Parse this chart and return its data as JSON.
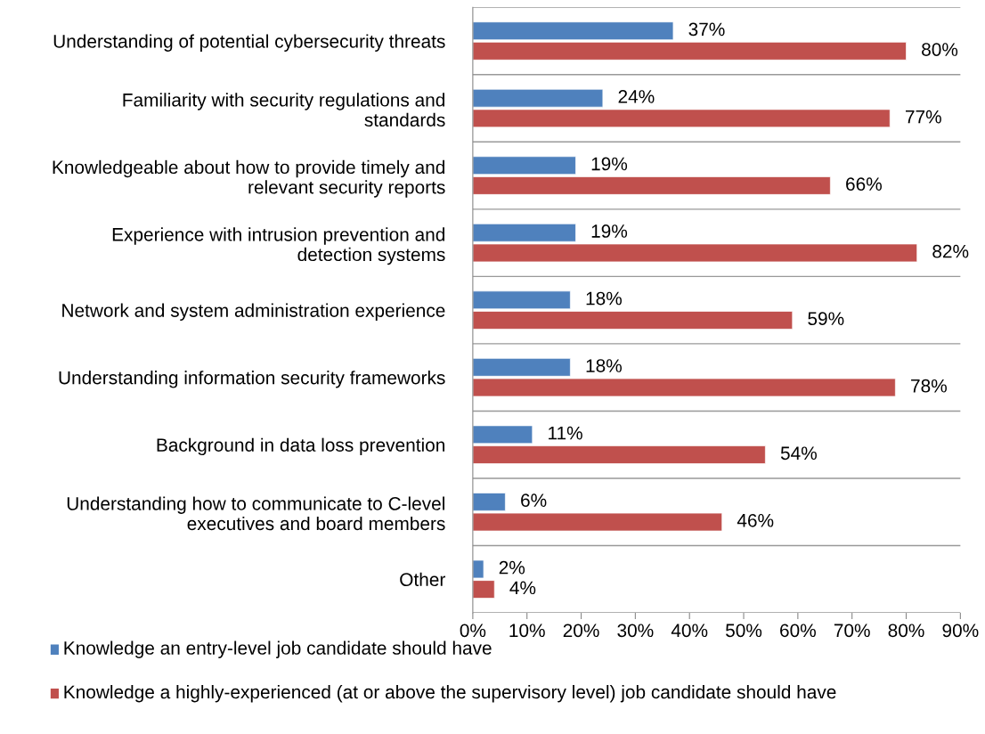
{
  "chart_data": {
    "type": "bar",
    "orientation": "horizontal",
    "categories": [
      "Understanding of potential cybersecurity threats",
      "Familiarity with security regulations and\nstandards",
      "Knowledgeable about how to provide timely and\nrelevant security reports",
      "Experience with intrusion prevention and\ndetection systems",
      "Network and system administration experience",
      "Understanding information security frameworks",
      "Background in data loss prevention",
      "Understanding how to communicate to C-level\nexecutives and board members",
      "Other"
    ],
    "series": [
      {
        "name": "Knowledge an entry-level job candidate should have",
        "color": "#4f81bd",
        "values": [
          37,
          24,
          19,
          19,
          18,
          18,
          11,
          6,
          2
        ],
        "value_labels": [
          "37%",
          "24%",
          "19%",
          "19%",
          "18%",
          "18%",
          "11%",
          "6%",
          "2%"
        ]
      },
      {
        "name": "Knowledge a highly-experienced (at or above the supervisory level) job candidate should have",
        "color": "#c0504d",
        "values": [
          80,
          77,
          66,
          82,
          59,
          78,
          54,
          46,
          4
        ],
        "value_labels": [
          "80%",
          "77%",
          "66%",
          "82%",
          "59%",
          "78%",
          "54%",
          "46%",
          "4%"
        ]
      }
    ],
    "xlim": [
      0,
      90
    ],
    "xticks": [
      {
        "value": 0,
        "label": "0%"
      },
      {
        "value": 10,
        "label": "10%"
      },
      {
        "value": 20,
        "label": "20%"
      },
      {
        "value": 30,
        "label": "30%"
      },
      {
        "value": 40,
        "label": "40%"
      },
      {
        "value": 50,
        "label": "50%"
      },
      {
        "value": 60,
        "label": "60%"
      },
      {
        "value": 70,
        "label": "70%"
      },
      {
        "value": 80,
        "label": "80%"
      },
      {
        "value": 90,
        "label": "90%"
      }
    ],
    "grid": "y",
    "legend": "bottom"
  }
}
